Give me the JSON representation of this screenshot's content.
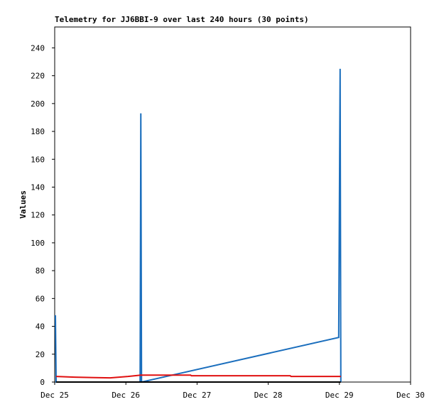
{
  "chart_data": {
    "type": "line",
    "title": "Telemetry for JJ6BBI-9 over last 240 hours (30 points)",
    "ylabel": "Values",
    "xlim": [
      25,
      30
    ],
    "xticks": [
      {
        "value": 25,
        "label": "Dec 25"
      },
      {
        "value": 26,
        "label": "Dec 26"
      },
      {
        "value": 27,
        "label": "Dec 27"
      },
      {
        "value": 28,
        "label": "Dec 28"
      },
      {
        "value": 29,
        "label": "Dec 29"
      },
      {
        "value": 30,
        "label": "Dec 30"
      }
    ],
    "ylim": [
      0,
      255
    ],
    "yticks": [
      0,
      20,
      40,
      60,
      80,
      100,
      120,
      140,
      160,
      180,
      200,
      220,
      240
    ],
    "series": [
      {
        "color": "#1a6ebd",
        "x": [
          25.01,
          25.02,
          26.2,
          26.21,
          26.22,
          28.99,
          29.01,
          29.02
        ],
        "values": [
          48,
          0,
          0,
          193,
          0,
          32,
          225,
          0
        ]
      },
      {
        "color": "#e01010",
        "x": [
          25.02,
          25.28,
          25.78,
          26.03,
          26.21,
          26.91,
          26.92,
          28.31,
          28.32,
          29.02
        ],
        "values": [
          4,
          3.5,
          3,
          4,
          5,
          5,
          4.5,
          4.5,
          4,
          4
        ]
      },
      {
        "color": "#000000",
        "x": [
          25.02,
          29.02
        ],
        "values": [
          0,
          0
        ]
      }
    ]
  }
}
